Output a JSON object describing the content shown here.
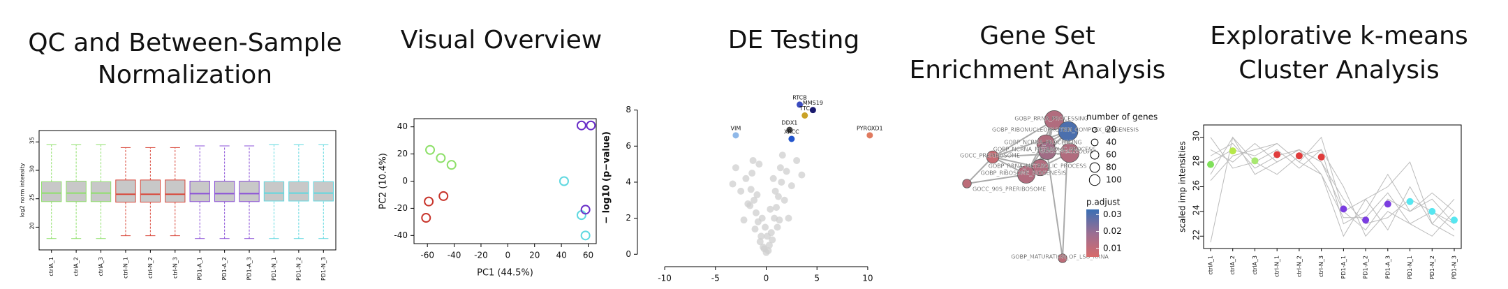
{
  "chart_data": [
    {
      "type": "box",
      "title": [
        "QC and Between-Sample",
        "Normalization"
      ],
      "y_label": "log2 norm intensity",
      "categories": [
        "ctrlA_1",
        "ctrlA_2",
        "ctrlA_3",
        "ctrl-N_1",
        "ctrl-N_2",
        "ctrl-N_3",
        "PD1-A_1",
        "PD1-A_2",
        "PD1-A_3",
        "PD1-N_1",
        "PD1-N_2",
        "PD1-N_3"
      ],
      "colors": [
        "#8ee06a",
        "#8ee06a",
        "#8ee06a",
        "#d9483b",
        "#d9483b",
        "#d9483b",
        "#8a4fd8",
        "#8a4fd8",
        "#8a4fd8",
        "#5fd8e0",
        "#5fd8e0",
        "#5fd8e0"
      ],
      "min": [
        18,
        18,
        18,
        18.5,
        18.5,
        18.5,
        18,
        18,
        18,
        18,
        18,
        18
      ],
      "q1": [
        24.5,
        24.5,
        24.5,
        24.4,
        24.4,
        24.4,
        24.5,
        24.5,
        24.5,
        24.6,
        24.6,
        24.6
      ],
      "median": [
        26,
        26,
        26,
        25.8,
        25.8,
        25.8,
        25.9,
        25.9,
        25.9,
        26,
        26,
        26
      ],
      "q3": [
        28,
        28.1,
        28,
        28.3,
        28.3,
        28.3,
        28.1,
        28.1,
        28.1,
        28,
        28,
        28
      ],
      "max": [
        34.5,
        34.5,
        34.5,
        34,
        34,
        34,
        34.3,
        34.3,
        34.3,
        34.5,
        34.5,
        34.5
      ],
      "ylim": [
        16,
        37
      ],
      "yticks": [
        20,
        25,
        30,
        35
      ]
    },
    {
      "type": "scatter",
      "title": [
        "Visual Overview"
      ],
      "x_label": "PC1 (44.5%)",
      "y_label": "PC2 (10.4%)",
      "series": [
        {
          "color": "#8ee06a",
          "x": [
            -58,
            -50,
            -42
          ],
          "y": [
            23,
            17,
            12
          ]
        },
        {
          "color": "#c8352c",
          "x": [
            -59,
            -48,
            -61
          ],
          "y": [
            -15,
            -11,
            -27
          ]
        },
        {
          "color": "#5fd8e0",
          "x": [
            42,
            55,
            58
          ],
          "y": [
            0,
            -25,
            -40
          ]
        },
        {
          "color": "#6a2fc8",
          "x": [
            55,
            62,
            58
          ],
          "y": [
            41,
            41,
            -21
          ]
        }
      ],
      "xlim": [
        -70,
        66
      ],
      "xticks": [
        -60,
        -40,
        -20,
        0,
        20,
        40,
        60
      ],
      "ylim": [
        -46,
        46
      ],
      "yticks": [
        -40,
        -20,
        0,
        20,
        40
      ]
    },
    {
      "type": "scatter",
      "title": [
        "DE Testing"
      ],
      "y_label": "− log10 (p−value)",
      "series": [
        {
          "color": "#cfcfcf",
          "x": [
            0,
            0.3,
            -0.3,
            0.5,
            -0.5,
            0.8,
            -0.8,
            1,
            -1,
            1.2,
            -1.2,
            1.5,
            -1.5,
            2,
            -2,
            0.2,
            -0.2,
            0.6,
            -0.6,
            1.1,
            -1.1,
            1.8,
            -1.8,
            2.5,
            -2.5,
            0.4,
            -0.4,
            0.9,
            -0.9,
            1.4,
            -1.4,
            3,
            -3,
            2.2,
            -2.2,
            0.7,
            -0.7,
            1.6,
            -1.6,
            3.5,
            -3.3,
            0.1,
            -0.1,
            1.3,
            -1.3
          ],
          "y": [
            0.1,
            0.5,
            0.4,
            1.2,
            1,
            2,
            1.8,
            2.6,
            2.3,
            3.2,
            3,
            4,
            3.6,
            4.6,
            4.2,
            0.2,
            0.3,
            0.8,
            0.7,
            1.5,
            1.4,
            3,
            2.8,
            3.8,
            3.5,
            2.5,
            2,
            3.5,
            3.3,
            4.8,
            4.5,
            5.2,
            4.8,
            2,
            1.9,
            4.2,
            5,
            5.5,
            2.7,
            4.4,
            3.9,
            1,
            1.5,
            1.9,
            5.2
          ]
        }
      ],
      "highlight": {
        "names": [
          "RTCB",
          "MMS19",
          "TTC",
          "DDX1",
          "XRCC",
          "VIM",
          "PYROXD1"
        ],
        "x": [
          3.3,
          4.6,
          3.8,
          2.3,
          2.5,
          -3,
          10.2
        ],
        "y": [
          8.3,
          8,
          7.7,
          6.9,
          6.4,
          6.6,
          6.6
        ],
        "colors": [
          "#3b4cc0",
          "#1a1a6e",
          "#c9a227",
          "#444444",
          "#2255cc",
          "#8fb8e8",
          "#e07a5f"
        ]
      },
      "xlim": [
        -12,
        12
      ],
      "xticks": [
        -10,
        -5,
        0,
        5,
        10
      ],
      "ylim": [
        -0.3,
        8.8
      ],
      "yticks": [
        0,
        2,
        4,
        6,
        8
      ]
    },
    {
      "type": "network",
      "title": [
        "Gene Set",
        "Enrichment Analysis"
      ],
      "labels": [
        "GOBP_RRNA_PROCESSING",
        "GOBP_RIBONUCLEOPROTEIN_COMPLEX_BIOGENESIS",
        "GOCC_NUCLEOLUS",
        "GOBP_NCRNA_PROCESSING",
        "GOBP_NCRNA_METABOLIC_PROCESS",
        "GOCC_PRERIBOSOME",
        "GOBP_RRNA_METABOLIC_PROCESS",
        "GOBP_RIBOSOME_BIOGENESIS",
        "GOCC_90S_PRERIBOSOME",
        "GOBP_MATURATION_OF_LSU_RRNA"
      ],
      "sizes": [
        95,
        100,
        95,
        85,
        80,
        40,
        70,
        80,
        20,
        20
      ],
      "p_adjust": [
        0.012,
        0.03,
        0.012,
        0.012,
        0.015,
        0.008,
        0.012,
        0.012,
        0.01,
        0.01
      ],
      "size_legend_title": "number of genes",
      "size_ticks": [
        20,
        40,
        60,
        80,
        100
      ],
      "color_legend_title": "p.adjust",
      "clim": [
        0.005,
        0.033
      ],
      "color_ticks": [
        0.01,
        0.02,
        0.03
      ]
    },
    {
      "type": "line",
      "title": [
        "Explorative k-means",
        "Cluster Analysis"
      ],
      "y_label": "scaled imp intensities",
      "categories": [
        "ctrlA_1",
        "ctrlA_2",
        "ctrlA_3",
        "ctrl-N_1",
        "ctrl-N_2",
        "ctrl-N_3",
        "PD1-A_1",
        "PD1-A_2",
        "PD1-A_3",
        "PD1-N_1",
        "PD1-N_2",
        "PD1-N_3"
      ],
      "profiles": [
        [
          21.5,
          30,
          27,
          28,
          29,
          27,
          22,
          25,
          26,
          28,
          23,
          22
        ],
        [
          28,
          29,
          28.5,
          29.5,
          28,
          30,
          24,
          22.5,
          25,
          24,
          25,
          23
        ],
        [
          29,
          28,
          29.5,
          28,
          29,
          28,
          25,
          23,
          23.5,
          25,
          24,
          22.5
        ],
        [
          27,
          30,
          28,
          29,
          27.5,
          29,
          23,
          24,
          27,
          24,
          25.5,
          24
        ],
        [
          30,
          27.5,
          28,
          27,
          28.5,
          29,
          26,
          22,
          24,
          23,
          24,
          23
        ],
        [
          28.5,
          29.5,
          27.5,
          28.5,
          29,
          28,
          24,
          25,
          22.5,
          26,
          23,
          25
        ],
        [
          26.5,
          28.5,
          29,
          29.5,
          28,
          27,
          23.5,
          23.5,
          25.5,
          23,
          22,
          24
        ]
      ],
      "profile_color": "#bbbbbb",
      "centers": [
        27.8,
        28.9,
        28.1,
        28.6,
        28.5,
        28.4,
        24.2,
        23.3,
        24.6,
        24.8,
        24.0,
        23.3
      ],
      "center_colors": [
        "#7fe05a",
        "#b6e84a",
        "#a8e870",
        "#e03c3c",
        "#e03c3c",
        "#e03c3c",
        "#7b3de0",
        "#7b3de0",
        "#7b3de0",
        "#56e6f0",
        "#56e6f0",
        "#56e6f0"
      ],
      "ylim": [
        21,
        31
      ],
      "yticks": [
        22,
        24,
        26,
        28,
        30
      ]
    }
  ]
}
